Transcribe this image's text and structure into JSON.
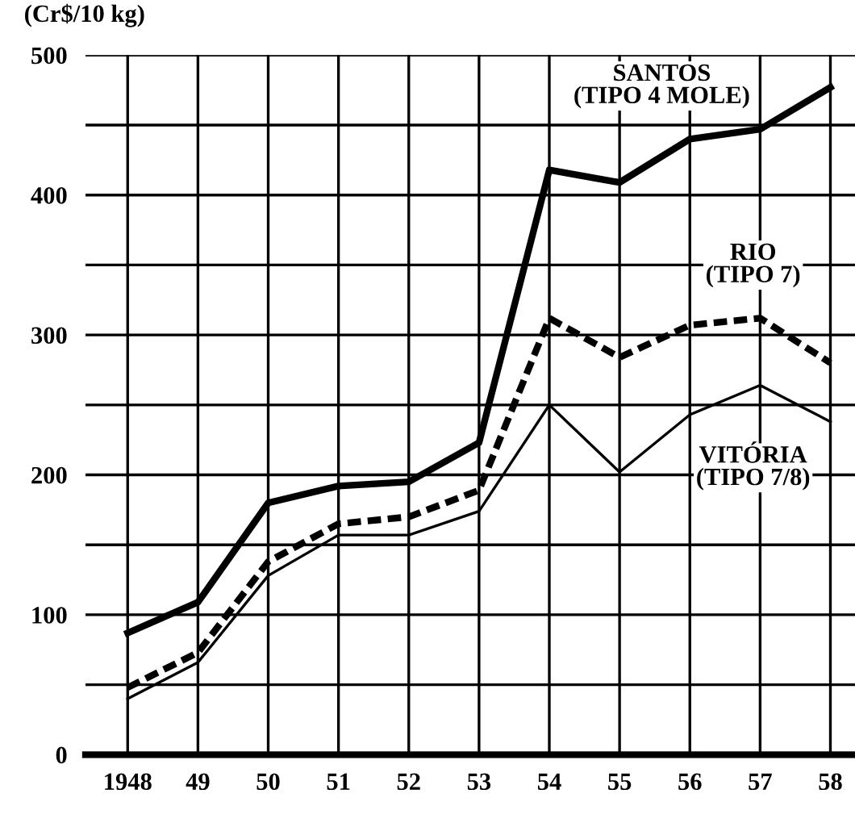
{
  "chart_data": {
    "type": "line",
    "ylabel": "(Cr$/10 kg)",
    "categories": [
      "1948",
      "49",
      "50",
      "51",
      "52",
      "53",
      "54",
      "55",
      "56",
      "57",
      "58"
    ],
    "series": [
      {
        "name": "SANTOS\n(TIPO 4 MOLE)",
        "color": "#000000",
        "line_style": "solid",
        "values": [
          87,
          109,
          180,
          192,
          195,
          223,
          418,
          409,
          440,
          447,
          477
        ]
      },
      {
        "name": "RIO\n(TIPO 7)",
        "color": "#000000",
        "line_style": "dashed",
        "values": [
          48,
          73,
          138,
          165,
          170,
          189,
          312,
          284,
          307,
          312,
          280
        ]
      },
      {
        "name": "VITÓRIA\n(TIPO 7/8)",
        "color": "#000000",
        "line_style": "solid",
        "values": [
          40,
          66,
          128,
          157,
          157,
          174,
          250,
          202,
          243,
          264,
          238
        ]
      }
    ],
    "ylim": [
      0,
      500
    ],
    "yticks": [
      0,
      {
        "value": 50,
        "label": null
      },
      100,
      {
        "value": 150,
        "label": null
      },
      200,
      {
        "value": 250,
        "label": null
      },
      300,
      {
        "value": 350,
        "label": null
      },
      400,
      {
        "value": 450,
        "label": null
      },
      500
    ],
    "grid": true,
    "legend": false,
    "marker": "none"
  }
}
